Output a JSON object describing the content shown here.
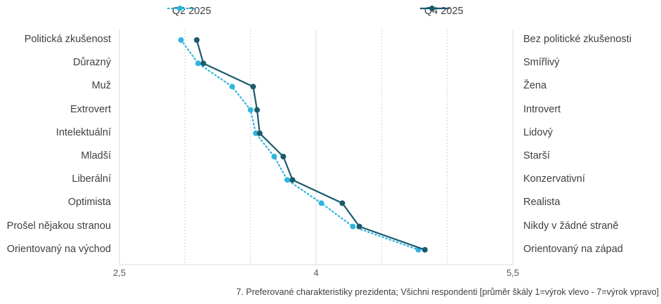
{
  "legend": [
    {
      "label": "Q2 2025",
      "color": "#2fb5dd",
      "line_style": "dotted"
    },
    {
      "label": "Q4 2025",
      "color": "#1a5a6e",
      "line_style": "solid"
    }
  ],
  "chart_data": {
    "type": "line",
    "subtype": "bipolar-profile",
    "description_scale": "mean of 1-7 scale, 1=left statement, 7=right statement",
    "left_labels": [
      "Politická zkušenost",
      "Důrazný",
      "Muž",
      "Extrovert",
      "Intelektuální",
      "Mladší",
      "Liberální",
      "Optimista",
      "Prošel nějakou stranou",
      "Orientovaný na východ"
    ],
    "right_labels": [
      "Bez politické zkušenosti",
      "Smířlivý",
      "Žena",
      "Introvert",
      "Lidový",
      "Starší",
      "Konzervativní",
      "Realista",
      "Nikdy v žádné straně",
      "Orientovaný na západ"
    ],
    "series": [
      {
        "name": "Q2 2025",
        "color": "#2fb5dd",
        "line": "dotted",
        "values": [
          2.97,
          3.1,
          3.36,
          3.5,
          3.54,
          3.68,
          3.78,
          4.04,
          4.28,
          4.78
        ]
      },
      {
        "name": "Q4 2025",
        "color": "#1a5a6e",
        "line": "solid",
        "values": [
          3.09,
          3.14,
          3.52,
          3.55,
          3.57,
          3.75,
          3.82,
          4.2,
          4.33,
          4.83
        ]
      }
    ],
    "x_axis": {
      "min": 2.5,
      "max": 5.5,
      "tick_labels": [
        "2,5",
        "4",
        "5,5"
      ],
      "tick_values": [
        2.5,
        4,
        5.5
      ],
      "minor_gridlines": [
        3,
        3.5,
        4.5,
        5
      ],
      "major_gridlines": [
        2.5,
        4,
        5.5
      ],
      "gridline_color_major": "#d9d9d9",
      "gridline_color_minor": "#cfcfcf"
    },
    "legend_position": "top",
    "caption": "7. Preferované charakteristiky prezidenta; Všichni respondenti [průměr škály 1=výrok vlevo - 7=výrok vpravo]"
  }
}
